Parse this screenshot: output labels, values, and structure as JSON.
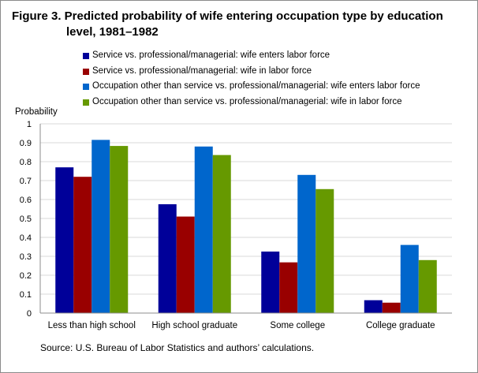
{
  "chart_data": {
    "type": "bar",
    "title": "Figure 3. Predicted probability of wife entering occupation type by education level, 1981–1982",
    "title_lines": [
      "Figure 3. Predicted probability of wife entering occupation type by education",
      "level, 1981–1982"
    ],
    "ylabel": "Probability",
    "xlabel": "",
    "ylim": [
      0,
      1
    ],
    "yticks": [
      0,
      0.1,
      0.2,
      0.3,
      0.4,
      0.5,
      0.6,
      0.7,
      0.8,
      0.9,
      1
    ],
    "ytick_labels": [
      "0",
      "0.1",
      "0.2",
      "0.3",
      "0.4",
      "0.5",
      "0.6",
      "0.7",
      "0.8",
      "0.9",
      "1"
    ],
    "grid": true,
    "legend_position": "top",
    "categories": [
      "Less than high school",
      "High school graduate",
      "Some college",
      "College graduate"
    ],
    "series": [
      {
        "name": "Service vs. professional/managerial: wife enters labor force",
        "color": "#000099",
        "values": [
          0.77,
          0.575,
          0.325,
          0.068
        ]
      },
      {
        "name": "Service vs. professional/managerial: wife in labor force",
        "color": "#990000",
        "values": [
          0.72,
          0.51,
          0.268,
          0.055
        ]
      },
      {
        "name": "Occupation other than service vs. professional/managerial: wife enters labor force",
        "color": "#0066cc",
        "values": [
          0.915,
          0.88,
          0.73,
          0.36
        ]
      },
      {
        "name": "Occupation other than service vs. professional/managerial: wife in labor force",
        "color": "#669900",
        "values": [
          0.883,
          0.835,
          0.655,
          0.28
        ]
      }
    ]
  },
  "source": "Source: U.S. Bureau of Labor Statistics and authors’ calculations."
}
